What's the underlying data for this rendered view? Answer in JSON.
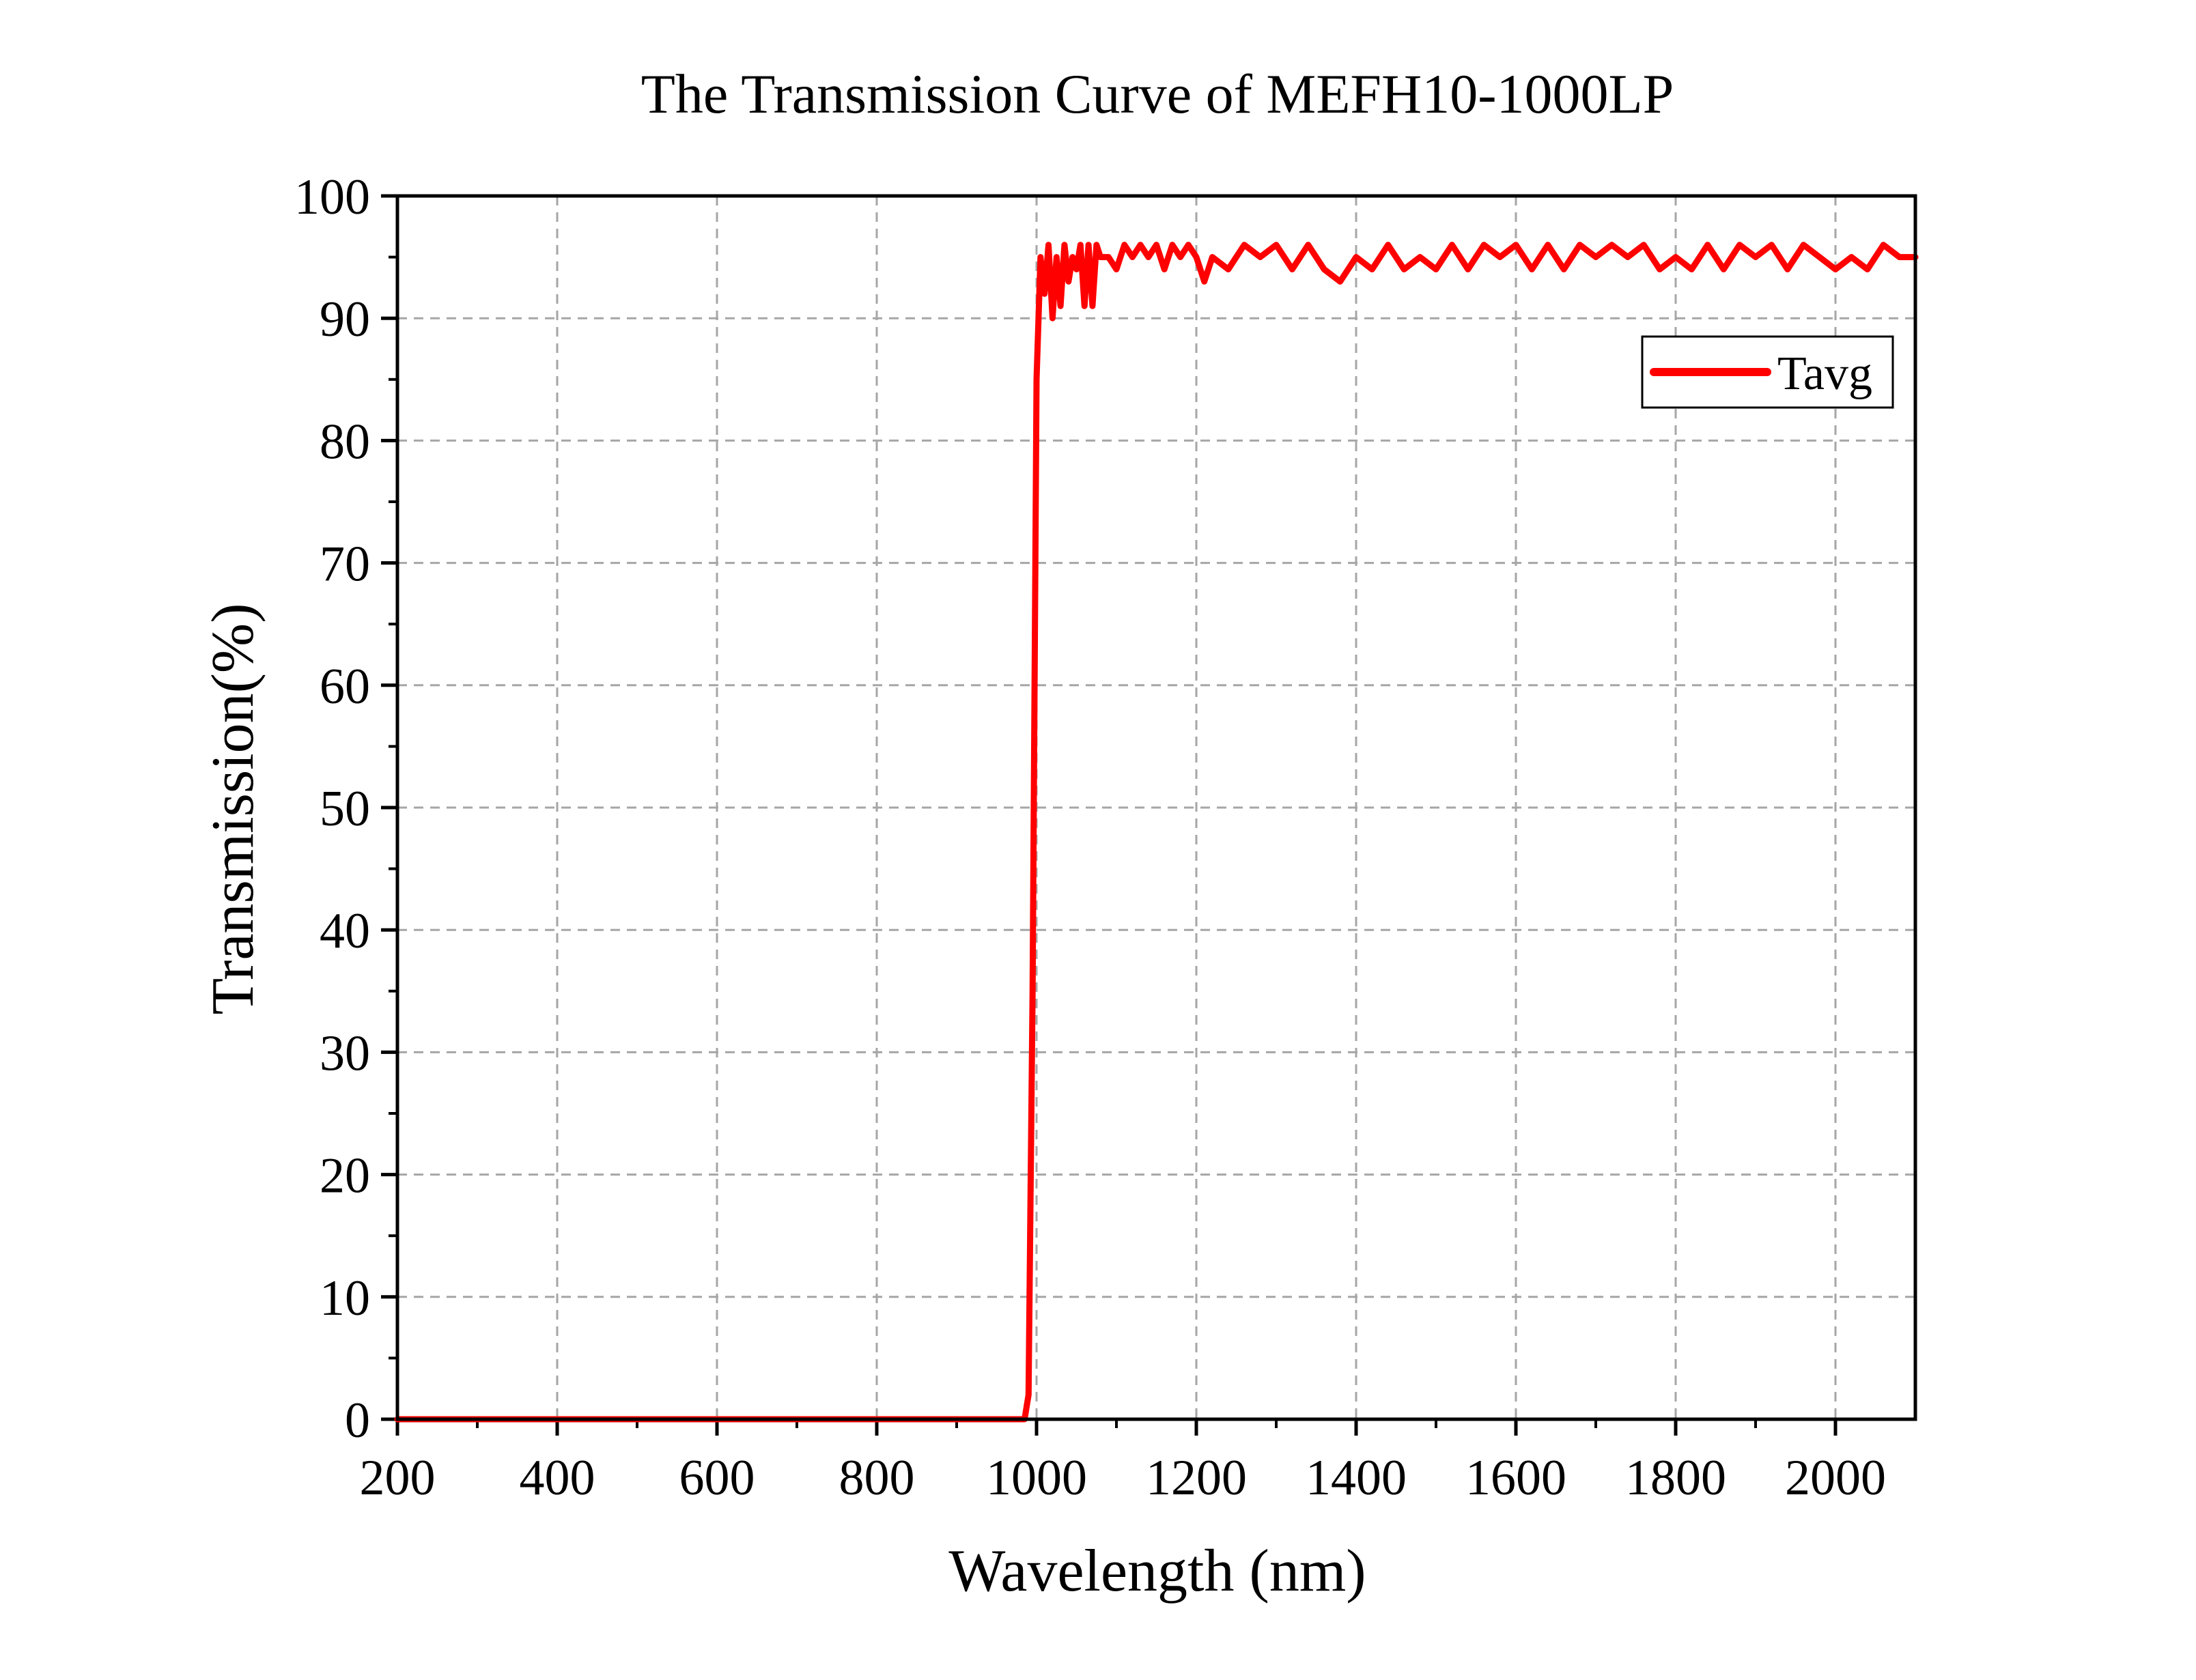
{
  "chart_data": {
    "type": "line",
    "title": "The Transmission Curve of MEFH10-1000LP",
    "xlabel": "Wavelength (nm)",
    "ylabel": "Transmission(%)",
    "xlim": [
      200,
      2100
    ],
    "ylim": [
      0,
      100
    ],
    "x_ticks": [
      200,
      400,
      600,
      800,
      1000,
      1200,
      1400,
      1600,
      1800,
      2000
    ],
    "y_ticks": [
      0,
      10,
      20,
      30,
      40,
      50,
      60,
      70,
      80,
      90,
      100
    ],
    "grid": true,
    "grid_style": "dashed",
    "legend_position": "top-right",
    "series": [
      {
        "name": "Tavg",
        "color": "#ff0000",
        "x": [
          200,
          400,
          600,
          800,
          985,
          990,
          995,
          1000,
          1005,
          1010,
          1015,
          1020,
          1025,
          1030,
          1035,
          1040,
          1045,
          1050,
          1055,
          1060,
          1065,
          1070,
          1075,
          1080,
          1090,
          1100,
          1110,
          1120,
          1130,
          1140,
          1150,
          1160,
          1170,
          1180,
          1190,
          1200,
          1210,
          1220,
          1240,
          1260,
          1280,
          1300,
          1320,
          1340,
          1360,
          1380,
          1400,
          1420,
          1440,
          1460,
          1480,
          1500,
          1520,
          1540,
          1560,
          1580,
          1600,
          1620,
          1640,
          1660,
          1680,
          1700,
          1720,
          1740,
          1760,
          1780,
          1800,
          1820,
          1840,
          1860,
          1880,
          1900,
          1920,
          1940,
          1960,
          1980,
          2000,
          2020,
          2040,
          2060,
          2080,
          2100
        ],
        "values": [
          0,
          0,
          0,
          0,
          0,
          2,
          35,
          85,
          95,
          92,
          96,
          90,
          95,
          91,
          96,
          93,
          95,
          94,
          96,
          91,
          96,
          91,
          96,
          95,
          95,
          94,
          96,
          95,
          96,
          95,
          96,
          94,
          96,
          95,
          96,
          95,
          93,
          95,
          94,
          96,
          95,
          96,
          94,
          96,
          94,
          93,
          95,
          94,
          96,
          94,
          95,
          94,
          96,
          94,
          96,
          95,
          96,
          94,
          96,
          94,
          96,
          95,
          96,
          95,
          96,
          94,
          95,
          94,
          96,
          94,
          96,
          95,
          96,
          94,
          96,
          95,
          94,
          95,
          94,
          96,
          95,
          95
        ]
      }
    ]
  }
}
